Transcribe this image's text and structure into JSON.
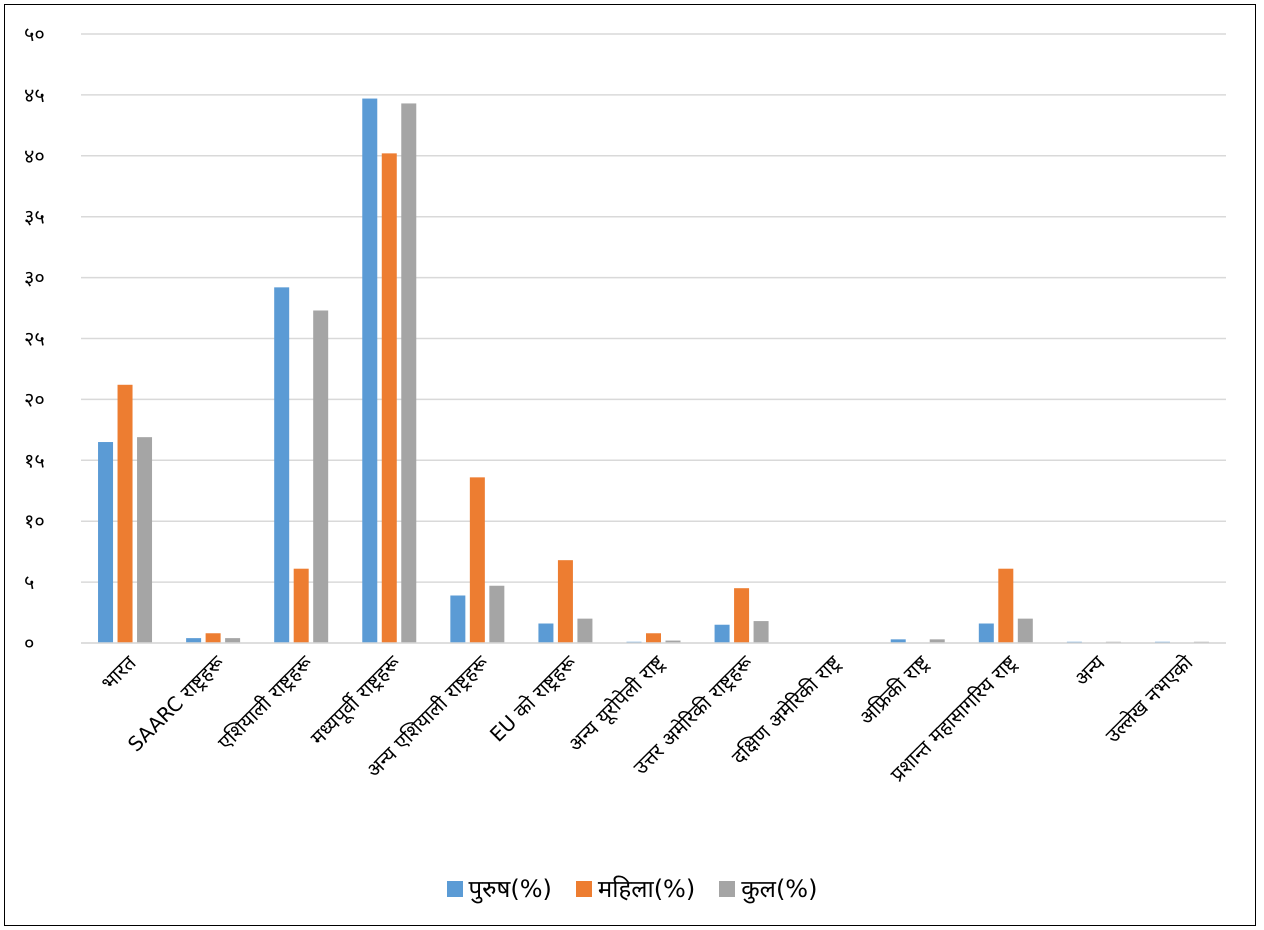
{
  "chart_data": {
    "type": "bar",
    "categories": [
      "भारत",
      "SAARC राष्ट्रहरू",
      "एशियाली राष्ट्रहरू",
      "मध्यपूर्वी राष्ट्रहरू",
      "अन्य एशियाली राष्ट्रहरू",
      "EU को राष्ट्रहरू",
      "अन्य यूरोपेली राष्ट्र",
      "उत्तर अमेरिकी राष्ट्रहरू",
      "दक्षिण अमेरिकी राष्ट्र",
      "अफ्रिकी राष्ट्र",
      "प्रशान्त महासागरिय राष्ट्र",
      "अन्य",
      "उल्लेख नभएको"
    ],
    "series": [
      {
        "name": "पुरुष(%)",
        "color": "#5b9bd5",
        "values": [
          16.5,
          0.4,
          29.2,
          44.7,
          3.9,
          1.6,
          0.1,
          1.5,
          0.0,
          0.3,
          1.6,
          0.1,
          0.1
        ]
      },
      {
        "name": "महिला(%)",
        "color": "#ed7d31",
        "values": [
          21.2,
          0.8,
          6.1,
          40.2,
          13.6,
          6.8,
          0.8,
          4.5,
          0.0,
          0.0,
          6.1,
          0.0,
          0.0
        ]
      },
      {
        "name": "कुल(%)",
        "color": "#a5a5a5",
        "values": [
          16.9,
          0.4,
          27.3,
          44.3,
          4.7,
          2.0,
          0.2,
          1.8,
          0.0,
          0.3,
          2.0,
          0.1,
          0.1
        ]
      }
    ],
    "y_ticks": [
      "०",
      "५",
      "१०",
      "१५",
      "२०",
      "२५",
      "३०",
      "३५",
      "४०",
      "४५",
      "५०"
    ],
    "ylim": [
      0,
      50
    ],
    "grid": true,
    "legend_position": "bottom"
  }
}
